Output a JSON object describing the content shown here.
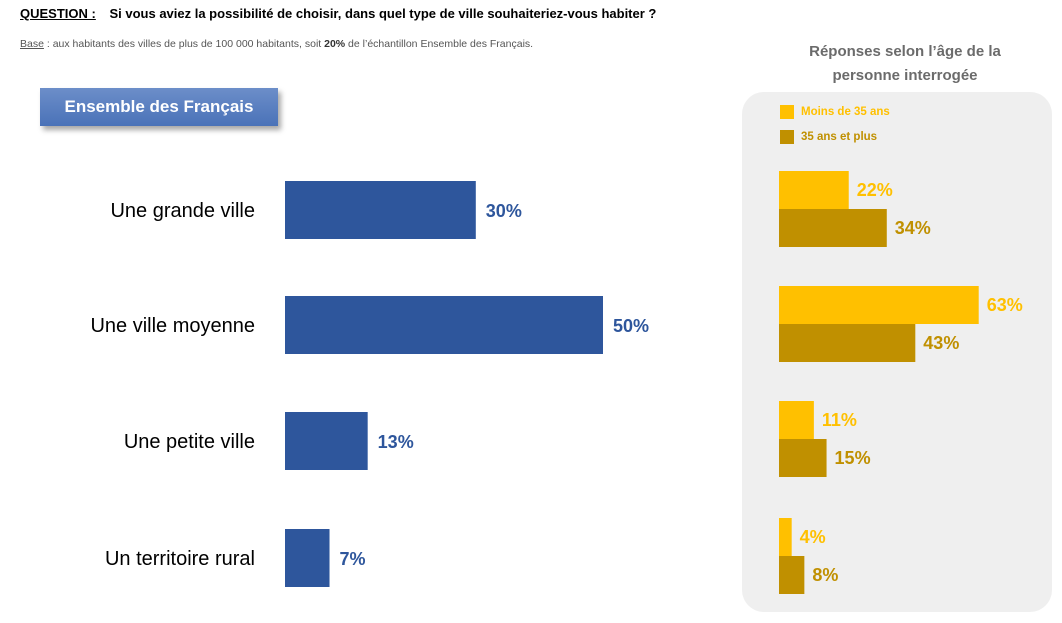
{
  "header": {
    "question_label": "QUESTION :",
    "question_text": "Si vous aviez la possibilité de choisir, dans quel type de ville souhaiteriez-vous habiter ?",
    "base_label": "Base",
    "base_text_before": " : aux habitants des villes de plus de 100 000 habitants, soit ",
    "base_pct": "20%",
    "base_text_after": " de l’échantillon Ensemble des Français."
  },
  "left_box_label": "Ensemble des Français",
  "right_title_line1": "Réponses selon l’âge de la",
  "right_title_line2": "personne interrogée",
  "colors": {
    "main": "#2e569c",
    "young": "#ffc000",
    "old": "#c09000"
  },
  "chart_data": [
    {
      "type": "bar",
      "title": "Ensemble des Français",
      "categories": [
        "Une grande ville",
        "Une ville moyenne",
        "Une petite ville",
        "Un territoire rural"
      ],
      "values": [
        30,
        50,
        13,
        7
      ],
      "value_labels": [
        "30%",
        "50%",
        "13%",
        "7%"
      ],
      "unit": "%"
    },
    {
      "type": "bar",
      "title": "Réponses selon l’âge de la personne interrogée",
      "categories": [
        "Une grande ville",
        "Une ville moyenne",
        "Une petite ville",
        "Un territoire rural"
      ],
      "legend_position": "top-left",
      "series": [
        {
          "name": "Moins de 35 ans",
          "values": [
            22,
            63,
            11,
            4
          ],
          "labels": [
            "22%",
            "63%",
            "11%",
            "4%"
          ]
        },
        {
          "name": "35 ans et plus",
          "values": [
            34,
            43,
            15,
            8
          ],
          "labels": [
            "34%",
            "43%",
            "15%",
            "8%"
          ]
        }
      ],
      "unit": "%"
    }
  ]
}
